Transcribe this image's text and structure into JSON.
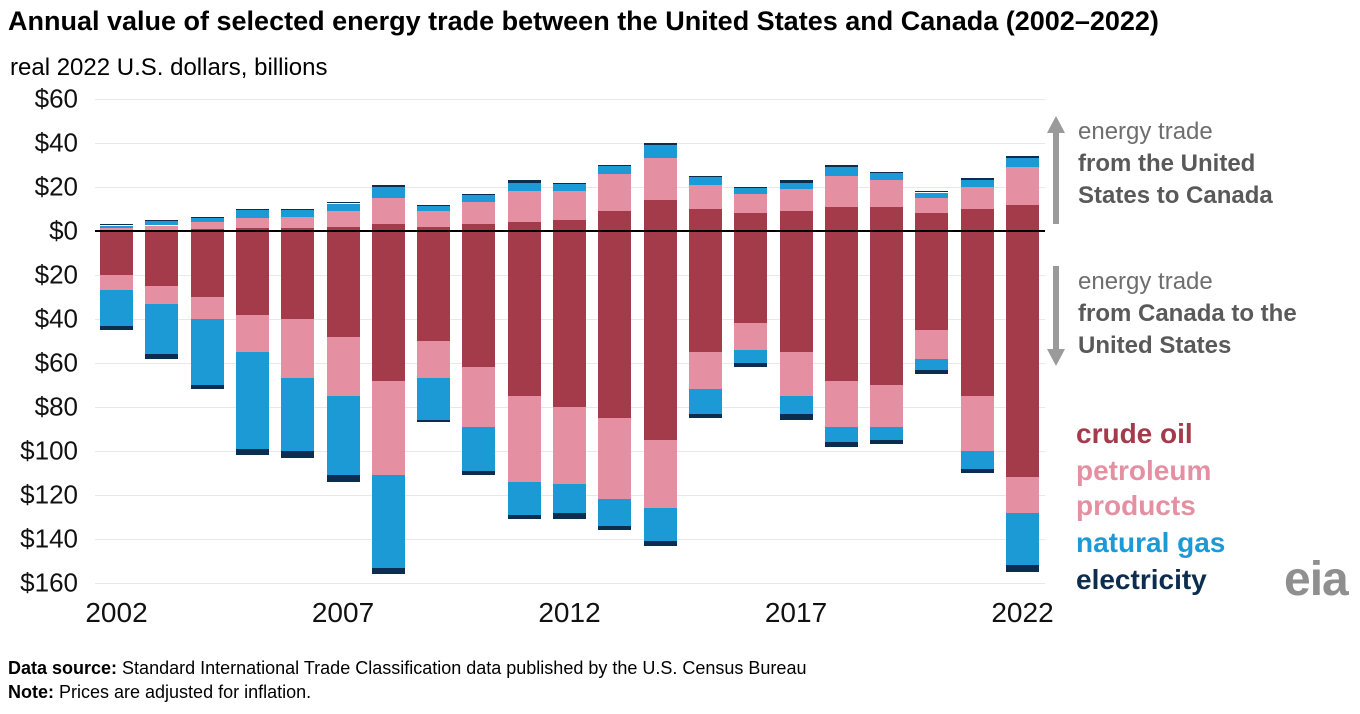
{
  "title": "Annual value of selected energy trade between the United States and Canada (2002–2022)",
  "subtitle": "real 2022 U.S. dollars, billions",
  "annotations": {
    "up": {
      "line1": "energy trade",
      "line2": "from the United",
      "line3": "States to Canada"
    },
    "down": {
      "line1": "energy trade",
      "line2": "from Canada to the",
      "line3": "United States"
    }
  },
  "legend": [
    {
      "label": "crude oil",
      "color": "#a33b4b"
    },
    {
      "label": "petroleum products",
      "color": "#e58fa2"
    },
    {
      "label": "natural gas",
      "color": "#1c9ad6"
    },
    {
      "label": "electricity",
      "color": "#0d2d4f"
    }
  ],
  "logo": "eia",
  "footer": {
    "source_label": "Data source:",
    "source_text": " Standard International Trade Classification data published by the U.S. Census Bureau",
    "note_label": "Note:",
    "note_text": " Prices are adjusted for inflation."
  },
  "chart_data": {
    "type": "bar",
    "subtype": "diverging-stacked",
    "title": "Annual value of selected energy trade between the United States and Canada (2002–2022)",
    "ylabel": "real 2022 U.S. dollars, billions",
    "ylim_above": 60,
    "ylim_below": 160,
    "y_tick_prefix": "$",
    "y_ticks_above": [
      60,
      40,
      20,
      0
    ],
    "y_ticks_below": [
      20,
      40,
      60,
      80,
      100,
      120,
      140,
      160
    ],
    "years": [
      2002,
      2003,
      2004,
      2005,
      2006,
      2007,
      2008,
      2009,
      2010,
      2011,
      2012,
      2013,
      2014,
      2015,
      2016,
      2017,
      2018,
      2019,
      2020,
      2021,
      2022
    ],
    "x_tick_years": [
      2002,
      2007,
      2012,
      2017,
      2022
    ],
    "stack_order": [
      "crude_oil",
      "petroleum_products",
      "natural_gas",
      "electricity"
    ],
    "colors": {
      "crude_oil": "#a33b4b",
      "petroleum_products": "#e58fa2",
      "natural_gas": "#1c9ad6",
      "electricity": "#0d2d4f"
    },
    "us_to_canada": {
      "crude_oil": [
        0.5,
        0.5,
        1,
        1.5,
        1.5,
        2,
        3,
        2,
        3,
        4,
        5,
        9,
        14,
        10,
        8,
        9,
        11,
        11,
        8,
        10,
        12
      ],
      "petroleum_products": [
        1,
        2,
        3,
        4.5,
        5,
        7,
        12,
        7,
        10,
        14,
        13,
        17,
        19,
        11,
        9,
        10,
        14,
        12,
        7,
        10,
        17
      ],
      "natural_gas": [
        1,
        2,
        2,
        3.5,
        3,
        3.5,
        5,
        2.5,
        3.5,
        4,
        3.5,
        3.5,
        6,
        3.5,
        2.5,
        3,
        4,
        3.5,
        2.5,
        3,
        4
      ],
      "electricity": [
        0.5,
        0.5,
        0.5,
        0.5,
        0.5,
        0.5,
        1,
        0.5,
        0.5,
        1,
        0.5,
        0.5,
        1,
        0.5,
        0.5,
        1,
        1,
        0.5,
        0.5,
        1,
        1
      ]
    },
    "canada_to_us": {
      "crude_oil": [
        20,
        25,
        30,
        38,
        40,
        48,
        68,
        50,
        62,
        75,
        80,
        85,
        95,
        55,
        42,
        55,
        68,
        70,
        45,
        75,
        112
      ],
      "petroleum_products": [
        7,
        8,
        10,
        17,
        27,
        27,
        43,
        17,
        27,
        39,
        35,
        37,
        31,
        17,
        12,
        20,
        21,
        19,
        13,
        25,
        16
      ],
      "natural_gas": [
        16,
        23,
        30,
        44,
        33,
        36,
        42,
        19,
        20,
        15,
        13,
        12,
        15,
        11,
        6,
        8,
        7,
        6,
        5,
        8,
        24
      ],
      "electricity": [
        2,
        2,
        2,
        3,
        3,
        3,
        3,
        1,
        2,
        2,
        3,
        2,
        2,
        2,
        2,
        3,
        2,
        2,
        2,
        2,
        3
      ]
    }
  }
}
